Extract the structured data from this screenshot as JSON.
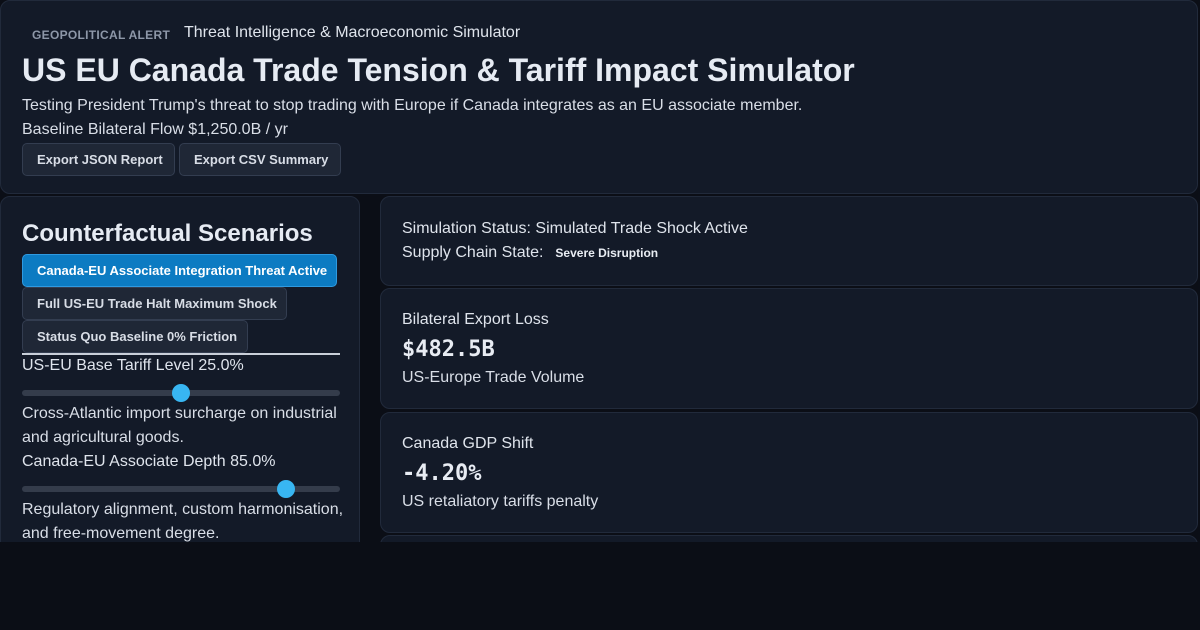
{
  "header": {
    "kicker": "GEOPOLITICAL ALERT",
    "kicker_subtitle": "Threat Intelligence & Macroeconomic Simulator",
    "title": "US EU Canada Trade Tension & Tariff Impact Simulator",
    "subtitle": "Testing President Trump's threat to stop trading with Europe if Canada integrates as an EU associate member.",
    "baseline": "Baseline Bilateral Flow $1,250.0B / yr",
    "export_json_label": "Export JSON Report",
    "export_csv_label": "Export CSV Summary"
  },
  "scenarios": {
    "title": "Counterfactual Scenarios",
    "items": [
      {
        "label": "Canada-EU Associate Integration Threat Active",
        "active": true
      },
      {
        "label": "Full US-EU Trade Halt Maximum Shock",
        "active": false
      },
      {
        "label": "Status Quo Baseline 0% Friction",
        "active": false
      }
    ],
    "active_color": "#0c7bc2"
  },
  "sliders": [
    {
      "label": "US-EU Base Tariff Level 25.0%",
      "value_fraction": 0.5,
      "description": "Cross-Atlantic import surcharge on industrial and agricultural goods."
    },
    {
      "label": "Canada-EU Associate Depth 85.0%",
      "value_fraction": 0.83,
      "description": "Regulatory alignment, custom harmonisation, and free-movement degree."
    }
  ],
  "status": {
    "simulation": "Simulation Status: Simulated Trade Shock Active",
    "supply_chain_label": "Supply Chain State:",
    "supply_chain_badge": "Severe Disruption"
  },
  "metrics": [
    {
      "label": "Bilateral Export Loss",
      "value": "$482.5B",
      "note": "US-Europe Trade Volume"
    },
    {
      "label": "Canada GDP Shift",
      "value": "-4.20%",
      "note": "US retaliatory tariffs penalty"
    }
  ],
  "colors": {
    "background": "#0b0e16",
    "panel": "#131a28",
    "accent": "#38b6f2"
  }
}
